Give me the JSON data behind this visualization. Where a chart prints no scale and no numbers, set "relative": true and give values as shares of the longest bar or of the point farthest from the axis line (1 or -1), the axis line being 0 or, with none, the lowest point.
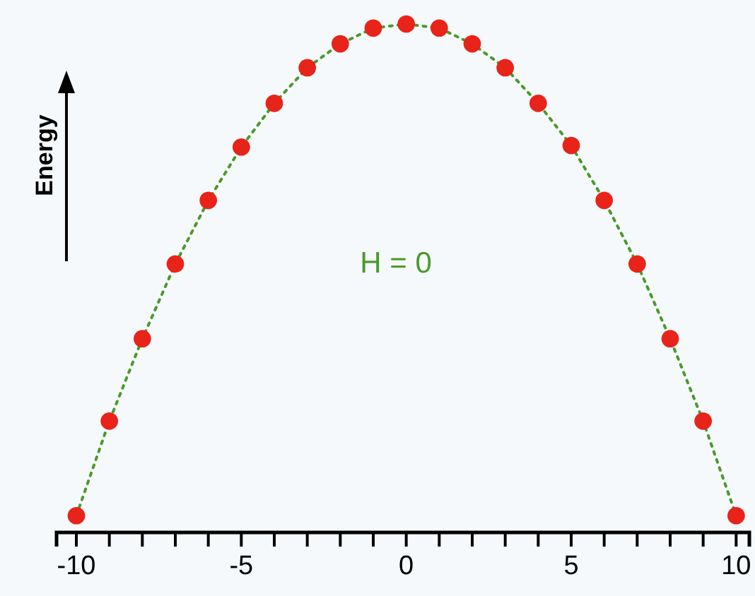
{
  "chart_data": {
    "type": "scatter",
    "relative": true,
    "ylabel": "Energy",
    "annotations": [
      "H = 0"
    ],
    "x": [
      -10,
      -9,
      -8,
      -7,
      -6,
      -5,
      -4,
      -3,
      -2,
      -1,
      0,
      1,
      2,
      3,
      4,
      5,
      6,
      7,
      8,
      9,
      10
    ],
    "xlim": [
      -10.6,
      10.4
    ],
    "xticks": [
      -10,
      {
        "value": -9,
        "label": null
      },
      {
        "value": -8,
        "label": null
      },
      {
        "value": -7,
        "label": null
      },
      {
        "value": -6,
        "label": null
      },
      -5,
      {
        "value": -4,
        "label": null
      },
      {
        "value": -3,
        "label": null
      },
      {
        "value": -2,
        "label": null
      },
      {
        "value": -1,
        "label": null
      },
      0,
      {
        "value": 1,
        "label": null
      },
      {
        "value": 2,
        "label": null
      },
      {
        "value": 3,
        "label": null
      },
      {
        "value": 4,
        "label": null
      },
      5,
      {
        "value": 6,
        "label": null
      },
      {
        "value": 7,
        "label": null
      },
      {
        "value": 8,
        "label": null
      },
      {
        "value": 9,
        "label": null
      },
      10
    ],
    "series": [
      {
        "type": "line",
        "color": "#4a9a2a",
        "line_style": "dotted",
        "marker": "none",
        "values": [
          0.033,
          0.219,
          0.381,
          0.528,
          0.653,
          0.758,
          0.844,
          0.914,
          0.961,
          0.992,
          1,
          0.992,
          0.961,
          0.914,
          0.844,
          0.761,
          0.653,
          0.528,
          0.381,
          0.219,
          0.033
        ]
      },
      {
        "color": "#e8231a",
        "marker": "circle",
        "values": [
          0.033,
          0.219,
          0.381,
          0.528,
          0.653,
          0.758,
          0.844,
          0.914,
          0.961,
          0.992,
          1,
          0.992,
          0.961,
          0.914,
          0.844,
          0.761,
          0.653,
          0.528,
          0.381,
          0.219,
          0.033
        ]
      }
    ]
  }
}
